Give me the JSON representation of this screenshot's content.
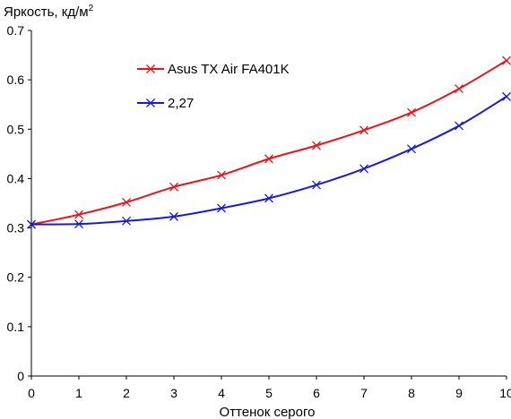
{
  "chart_data": {
    "type": "line",
    "ylabel": "Яркость, кд/м",
    "ylabel_sup": "2",
    "xlabel": "Оттенок серого",
    "xlim": [
      0,
      10
    ],
    "ylim": [
      0,
      0.7
    ],
    "x_ticks": [
      "0",
      "1",
      "2",
      "3",
      "4",
      "5",
      "6",
      "7",
      "8",
      "9",
      "10"
    ],
    "y_ticks": [
      "0",
      "0.1",
      "0.2",
      "0.3",
      "0.4",
      "0.5",
      "0.6",
      "0.7"
    ],
    "grid": false,
    "legend_position": "upper-left",
    "x": [
      0,
      1,
      2,
      3,
      4,
      5,
      6,
      7,
      8,
      9,
      10
    ],
    "series": [
      {
        "name": "Asus TX Air FA401K",
        "color": "#e8141c",
        "marker": "x",
        "values": [
          0.307,
          0.327,
          0.352,
          0.383,
          0.407,
          0.44,
          0.467,
          0.498,
          0.534,
          0.582,
          0.639
        ]
      },
      {
        "name": "2,27",
        "color": "#1a1ad6",
        "marker": "x",
        "values": [
          0.307,
          0.308,
          0.314,
          0.323,
          0.34,
          0.36,
          0.387,
          0.42,
          0.46,
          0.507,
          0.566
        ]
      }
    ]
  }
}
